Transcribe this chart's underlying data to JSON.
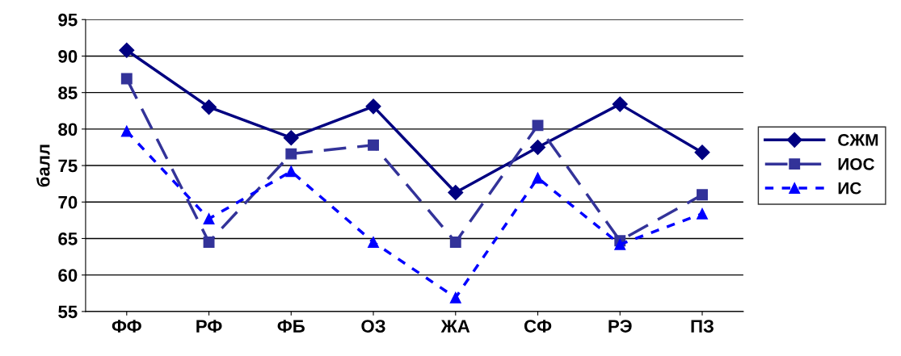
{
  "chart_data": {
    "type": "line",
    "ylabel": "балл",
    "categories": [
      "ФФ",
      "РФ",
      "ФБ",
      "ОЗ",
      "ЖА",
      "СФ",
      "РЭ",
      "ПЗ"
    ],
    "series": [
      {
        "name": "СЖМ",
        "color": "#000080",
        "marker": "diamond",
        "line_style": "solid",
        "values": [
          90.8,
          83.0,
          78.8,
          83.1,
          71.3,
          77.5,
          83.4,
          76.8
        ]
      },
      {
        "name": "ИОС",
        "color": "#333399",
        "marker": "square",
        "line_style": "dashed",
        "values": [
          86.9,
          64.5,
          76.6,
          77.8,
          64.5,
          80.5,
          64.7,
          71.0
        ]
      },
      {
        "name": "ИС",
        "color": "#0000ff",
        "marker": "triangle",
        "line_style": "dotted",
        "values": [
          79.7,
          67.7,
          74.2,
          64.5,
          56.9,
          73.3,
          64.2,
          68.4
        ]
      }
    ],
    "ylim": [
      55,
      95
    ],
    "yticks": [
      55,
      60,
      65,
      70,
      75,
      80,
      85,
      90,
      95
    ],
    "grid": "y",
    "legend": "right"
  }
}
